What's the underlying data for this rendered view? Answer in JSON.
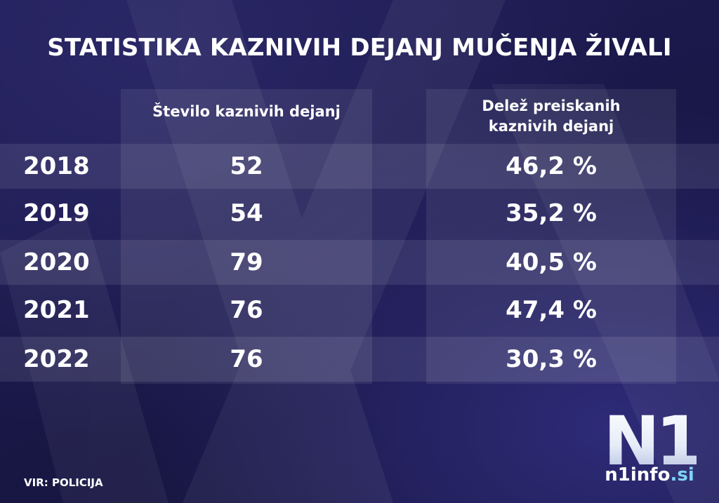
{
  "title": "STATISTIKA KAZNIVIH DEJANJ MUČENJA ŽIVALI",
  "table": {
    "headers": {
      "count": "Število kaznivih dejanj",
      "share_line1": "Delež preiskanih",
      "share_line2": "kaznivih dejanj"
    },
    "rows": [
      {
        "year": "2018",
        "count": "52",
        "share": "46,2 %"
      },
      {
        "year": "2019",
        "count": "54",
        "share": "35,2 %"
      },
      {
        "year": "2020",
        "count": "79",
        "share": "40,5 %"
      },
      {
        "year": "2021",
        "count": "76",
        "share": "47,4 %"
      },
      {
        "year": "2022",
        "count": "76",
        "share": "30,3 %"
      }
    ]
  },
  "source": "VIR: POLICIJA",
  "brand": {
    "logo_text": "N1",
    "site_name": "n1info",
    "site_tld": ".si",
    "tld_color": "#7fd3f5"
  }
}
